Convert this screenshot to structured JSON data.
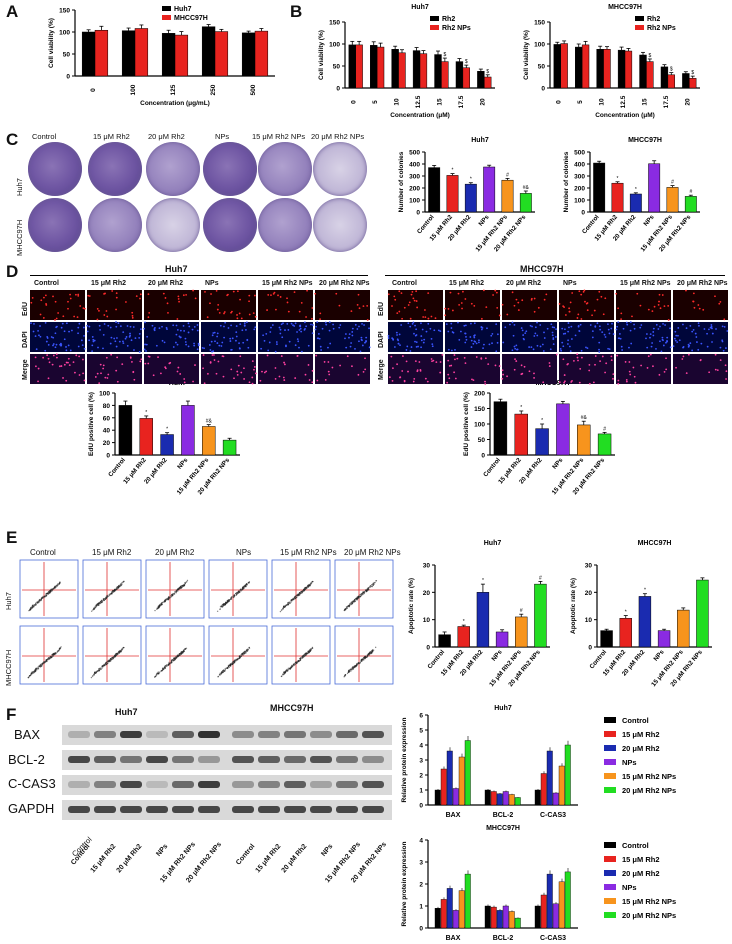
{
  "panels": [
    "A",
    "B",
    "C",
    "D",
    "E",
    "F"
  ],
  "colors": {
    "control": "#000000",
    "rh15": "#e8231f",
    "rh20": "#1a2bb0",
    "nps": "#8a2be2",
    "rh15nps": "#f7941d",
    "rh20nps": "#22dd22",
    "huh7": "#000000",
    "mhcc97h": "#e8231f",
    "rh2": "#000000",
    "rh2nps": "#e8231f"
  },
  "groups": [
    "Control",
    "15 μM Rh2",
    "20 μM Rh2",
    "NPs",
    "15 μM Rh2 NPs",
    "20 μM Rh2 NPs"
  ],
  "cell_lines": {
    "huh7": "Huh7",
    "mhcc97h": "MHCC97H"
  },
  "panelD_rows": [
    "EdU",
    "DAPI",
    "Merge"
  ],
  "panelF_blots": [
    "BAX",
    "BCL-2",
    "C-CAS3",
    "GAPDH"
  ],
  "chart_data": [
    {
      "id": "A",
      "type": "bar",
      "categories": [
        "0",
        "100",
        "125",
        "250",
        "500"
      ],
      "series": [
        {
          "name": "Huh7",
          "values": [
            100,
            103,
            97,
            112,
            98
          ]
        },
        {
          "name": "MHCC97H",
          "values": [
            104,
            108,
            93,
            101,
            102
          ]
        }
      ],
      "errors": [
        [
          5,
          6,
          7,
          5,
          4
        ],
        [
          9,
          8,
          8,
          5,
          6
        ]
      ],
      "xlabel": "Concentration (μg/mL)",
      "ylabel": "Cell viability (%)",
      "ylim": [
        0,
        150
      ],
      "yticks": [
        0,
        50,
        100,
        150
      ],
      "legend": "top-right"
    },
    {
      "id": "B1",
      "type": "bar",
      "title": "Huh7",
      "categories": [
        "0",
        "5",
        "10",
        "12.5",
        "15",
        "17.5",
        "20"
      ],
      "series": [
        {
          "name": "Rh2",
          "values": [
            98,
            97,
            88,
            85,
            76,
            60,
            38
          ]
        },
        {
          "name": "Rh2 NPs",
          "values": [
            98,
            93,
            80,
            78,
            60,
            46,
            25
          ]
        }
      ],
      "errors": [
        [
          8,
          8,
          7,
          7,
          8,
          7,
          5
        ],
        [
          8,
          9,
          7,
          7,
          8,
          6,
          5
        ]
      ],
      "markers": [
        "",
        "",
        "",
        "",
        "$",
        "$",
        "$"
      ],
      "xlabel": "Concentration (μM)",
      "ylabel": "Cell viability (%)",
      "ylim": [
        0,
        150
      ],
      "yticks": [
        0,
        50,
        100,
        150
      ],
      "legend": "top-right"
    },
    {
      "id": "B2",
      "type": "bar",
      "title": "MHCC97H",
      "categories": [
        "0",
        "5",
        "10",
        "12.5",
        "15",
        "17.5",
        "20"
      ],
      "series": [
        {
          "name": "Rh2",
          "values": [
            99,
            93,
            88,
            86,
            75,
            48,
            33
          ]
        },
        {
          "name": "Rh2 NPs",
          "values": [
            101,
            98,
            88,
            84,
            60,
            30,
            22
          ]
        }
      ],
      "errors": [
        [
          5,
          7,
          7,
          7,
          6,
          5,
          4
        ],
        [
          6,
          8,
          6,
          6,
          6,
          5,
          5
        ]
      ],
      "markers": [
        "",
        "",
        "",
        "",
        "$",
        "$",
        "$"
      ],
      "xlabel": "Concentration (μM)",
      "ylabel": "Cell viability (%)",
      "ylim": [
        0,
        150
      ],
      "yticks": [
        0,
        50,
        100,
        150
      ],
      "legend": "top-right"
    },
    {
      "id": "C1",
      "type": "bar",
      "title": "Huh7",
      "categories": [
        "Control",
        "15 μM Rh2",
        "20 μM Rh2",
        "NPs",
        "15 μM Rh2 NPs",
        "20 μM Rh2 NPs"
      ],
      "values": [
        370,
        305,
        232,
        375,
        265,
        155
      ],
      "errors": [
        18,
        15,
        12,
        15,
        15,
        20
      ],
      "markers": [
        "",
        "*",
        "*",
        "",
        "#",
        "#&"
      ],
      "ylabel": "Number of colonies",
      "ylim": [
        0,
        500
      ],
      "yticks": [
        0,
        100,
        200,
        300,
        400,
        500
      ]
    },
    {
      "id": "C2",
      "type": "bar",
      "title": "MHCC97H",
      "categories": [
        "Control",
        "15 μM Rh2",
        "20 μM Rh2",
        "NPs",
        "15 μM Rh2 NPs",
        "20 μM Rh2 NPs"
      ],
      "values": [
        408,
        240,
        150,
        402,
        205,
        130
      ],
      "errors": [
        15,
        12,
        10,
        25,
        15,
        10
      ],
      "markers": [
        "",
        "*",
        "*",
        "",
        "#",
        "#"
      ],
      "ylabel": "Number of colonies",
      "ylim": [
        0,
        500
      ],
      "yticks": [
        0,
        100,
        200,
        300,
        400,
        500
      ]
    },
    {
      "id": "D1",
      "type": "bar",
      "title": "Huh7",
      "categories": [
        "Control",
        "15 μM Rh2",
        "20 μM Rh2",
        "NPs",
        "15 μM Rh2 NPs",
        "20 μM Rh2 NPs"
      ],
      "values": [
        80,
        59,
        33,
        80,
        46,
        24
      ],
      "errors": [
        7,
        4,
        3,
        7,
        3,
        3
      ],
      "markers": [
        "",
        "*",
        "*",
        "",
        "#&",
        ""
      ],
      "ylabel": "EdU positive cell (%)",
      "ylim": [
        0,
        100
      ],
      "yticks": [
        0,
        20,
        40,
        60,
        80,
        100
      ]
    },
    {
      "id": "D2",
      "type": "bar",
      "title": "MHCC97H",
      "categories": [
        "Control",
        "15 μM Rh2",
        "20 μM Rh2",
        "NPs",
        "15 μM Rh2 NPs",
        "20 μM Rh2 NPs"
      ],
      "values": [
        172,
        132,
        85,
        165,
        97,
        68
      ],
      "errors": [
        8,
        10,
        15,
        8,
        12,
        5
      ],
      "markers": [
        "",
        "*",
        "*",
        "",
        "#&",
        "#"
      ],
      "ylabel": "EdU positive cell (%)",
      "ylim": [
        0,
        200
      ],
      "yticks": [
        0,
        50,
        100,
        150,
        200
      ]
    },
    {
      "id": "E1",
      "type": "bar",
      "title": "Huh7",
      "categories": [
        "Control",
        "15 μM Rh2",
        "20 μM Rh2",
        "NPs",
        "15 μM Rh2 NPs",
        "20 μM Rh2 NPs"
      ],
      "values": [
        4.5,
        7.5,
        20,
        5.5,
        11,
        23
      ],
      "errors": [
        1,
        0.5,
        3,
        0.8,
        1,
        1
      ],
      "markers": [
        "",
        "*",
        "*",
        "",
        "#",
        "#"
      ],
      "ylabel": "Apoptotic rate (%)",
      "ylim": [
        0,
        30
      ],
      "yticks": [
        0,
        10,
        20,
        30
      ]
    },
    {
      "id": "E2",
      "type": "bar",
      "title": "MHCC97H",
      "categories": [
        "Control",
        "15 μM Rh2",
        "20 μM Rh2",
        "NPs",
        "15 μM Rh2 NPs",
        "20 μM Rh2 NPs"
      ],
      "values": [
        6,
        10.5,
        18.5,
        6,
        13.5,
        24.5
      ],
      "errors": [
        0.5,
        1,
        1,
        0.5,
        0.8,
        0.8
      ],
      "markers": [
        "",
        "*",
        "*",
        "",
        "",
        ""
      ],
      "ylabel": "Apoptotic rate (%)",
      "ylim": [
        0,
        30
      ],
      "yticks": [
        0,
        10,
        20,
        30
      ]
    },
    {
      "id": "F1",
      "type": "bar",
      "title": "Huh7",
      "categories": [
        "BAX",
        "BCL-2",
        "C-CAS3"
      ],
      "series": [
        {
          "name": "Control",
          "values": [
            1.0,
            1.0,
            1.0
          ]
        },
        {
          "name": "15 μM Rh2",
          "values": [
            2.4,
            0.9,
            2.1
          ]
        },
        {
          "name": "20 μM Rh2",
          "values": [
            3.6,
            0.75,
            3.6
          ]
        },
        {
          "name": "NPs",
          "values": [
            1.1,
            0.9,
            0.8
          ]
        },
        {
          "name": "15 μM Rh2 NPs",
          "values": [
            3.2,
            0.7,
            2.6
          ]
        },
        {
          "name": "20 μM Rh2 NPs",
          "values": [
            4.3,
            0.5,
            4.0
          ]
        }
      ],
      "ylabel": "Relative protein expression",
      "ylim": [
        0,
        6
      ],
      "yticks": [
        0,
        1,
        2,
        3,
        4,
        5,
        6
      ],
      "legend": "right"
    },
    {
      "id": "F2",
      "type": "bar",
      "title": "MHCC97H",
      "categories": [
        "BAX",
        "BCL-2",
        "C-CAS3"
      ],
      "series": [
        {
          "name": "Control",
          "values": [
            0.9,
            1.0,
            1.0
          ]
        },
        {
          "name": "15 μM Rh2",
          "values": [
            1.3,
            0.95,
            1.5
          ]
        },
        {
          "name": "20 μM Rh2",
          "values": [
            1.8,
            0.8,
            2.45
          ]
        },
        {
          "name": "NPs",
          "values": [
            0.8,
            1.0,
            1.1
          ]
        },
        {
          "name": "15 μM Rh2 NPs",
          "values": [
            1.7,
            0.75,
            2.1
          ]
        },
        {
          "name": "20 μM Rh2 NPs",
          "values": [
            2.45,
            0.45,
            2.55
          ]
        }
      ],
      "ylabel": "Relative protein expression",
      "ylim": [
        0,
        4
      ],
      "yticks": [
        0,
        1,
        2,
        3,
        4
      ],
      "legend": "right"
    }
  ]
}
